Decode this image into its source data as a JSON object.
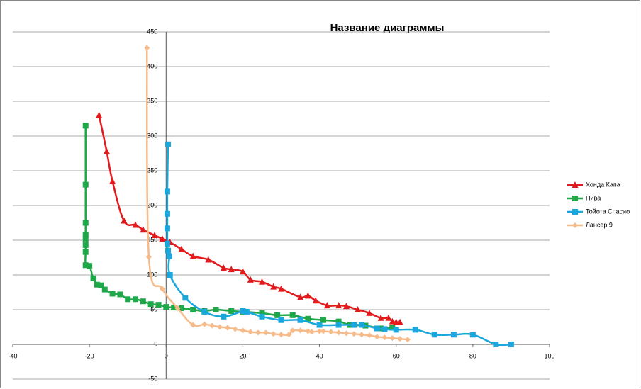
{
  "chart_data": {
    "type": "scatter",
    "title": "Название диаграммы",
    "xlim": [
      -40,
      100
    ],
    "xticks": [
      -40,
      -20,
      0,
      20,
      40,
      60,
      80,
      100
    ],
    "ylim": [
      -50,
      450
    ],
    "yticks": [
      -50,
      0,
      50,
      100,
      150,
      200,
      250,
      300,
      350,
      400,
      450
    ],
    "grid": true,
    "legend": "right",
    "series": [
      {
        "name": "Хонда Капа",
        "color": "#e31a1c",
        "marker": "triangle",
        "x": [
          -17.5,
          -15.5,
          -14,
          -11,
          -8,
          -6,
          -3,
          -1,
          1,
          4,
          7,
          11,
          15,
          17,
          20,
          22,
          25,
          28,
          30,
          35,
          37,
          39,
          42,
          45,
          47,
          50,
          53,
          56,
          58,
          59,
          60,
          61
        ],
        "values": [
          330,
          278,
          235,
          178,
          172,
          165,
          157,
          152,
          147,
          137,
          127,
          122,
          110,
          108,
          105,
          93,
          90,
          83,
          80,
          68,
          70,
          63,
          56,
          56,
          55,
          50,
          45,
          38,
          38,
          33,
          32,
          32
        ]
      },
      {
        "name": "Нива",
        "color": "#1fa84a",
        "marker": "square",
        "x": [
          -21,
          -21,
          -21,
          -21,
          -21,
          -21,
          -21,
          -21,
          -20,
          -19,
          -18,
          -17,
          -16,
          -14,
          -12,
          -10,
          -8,
          -6,
          -4,
          -2,
          0,
          2,
          4,
          7,
          10,
          13,
          17,
          20,
          25,
          29,
          33,
          37,
          41,
          45,
          48,
          52,
          56,
          59
        ],
        "values": [
          315,
          230,
          175,
          158,
          152,
          143,
          133,
          114,
          113,
          95,
          86,
          85,
          79,
          73,
          72,
          65,
          65,
          62,
          58,
          57,
          54,
          53,
          52,
          50,
          48,
          50,
          48,
          47,
          45,
          42,
          42,
          37,
          35,
          33,
          28,
          27,
          23,
          24
        ]
      },
      {
        "name": "Тойота Спасио",
        "color": "#1aa7dc",
        "marker": "square",
        "x": [
          0.5,
          0.3,
          0.3,
          0.3,
          0.3,
          0.5,
          0.8,
          1,
          5,
          10,
          15,
          20,
          21,
          25,
          30,
          35,
          40,
          45,
          49,
          51,
          55,
          57,
          60,
          65,
          70,
          75,
          80,
          86,
          90
        ],
        "values": [
          288,
          220,
          188,
          167,
          145,
          135,
          127,
          100,
          67,
          47,
          40,
          48,
          47,
          40,
          35,
          35,
          28,
          28,
          28,
          28,
          23,
          22,
          21,
          21,
          14,
          14,
          14,
          0,
          0
        ]
      },
      {
        "name": "Лансер 9",
        "color": "#f7bb8a",
        "marker": "diamond",
        "x": [
          -5,
          -4.5,
          -1,
          3,
          7,
          10,
          12,
          14,
          16,
          18,
          20,
          22,
          24,
          26,
          28,
          30,
          32,
          33,
          35,
          37,
          38,
          40,
          41,
          43,
          45,
          47,
          49,
          51,
          53,
          55,
          57,
          59,
          61,
          63
        ],
        "values": [
          427,
          126,
          80,
          52,
          28,
          29,
          27,
          25,
          24,
          22,
          20,
          18,
          17,
          17,
          15,
          14,
          14,
          20,
          20,
          19,
          18,
          19,
          19,
          18,
          17,
          16,
          15,
          14,
          13,
          11,
          10,
          9,
          8,
          7
        ]
      }
    ]
  }
}
